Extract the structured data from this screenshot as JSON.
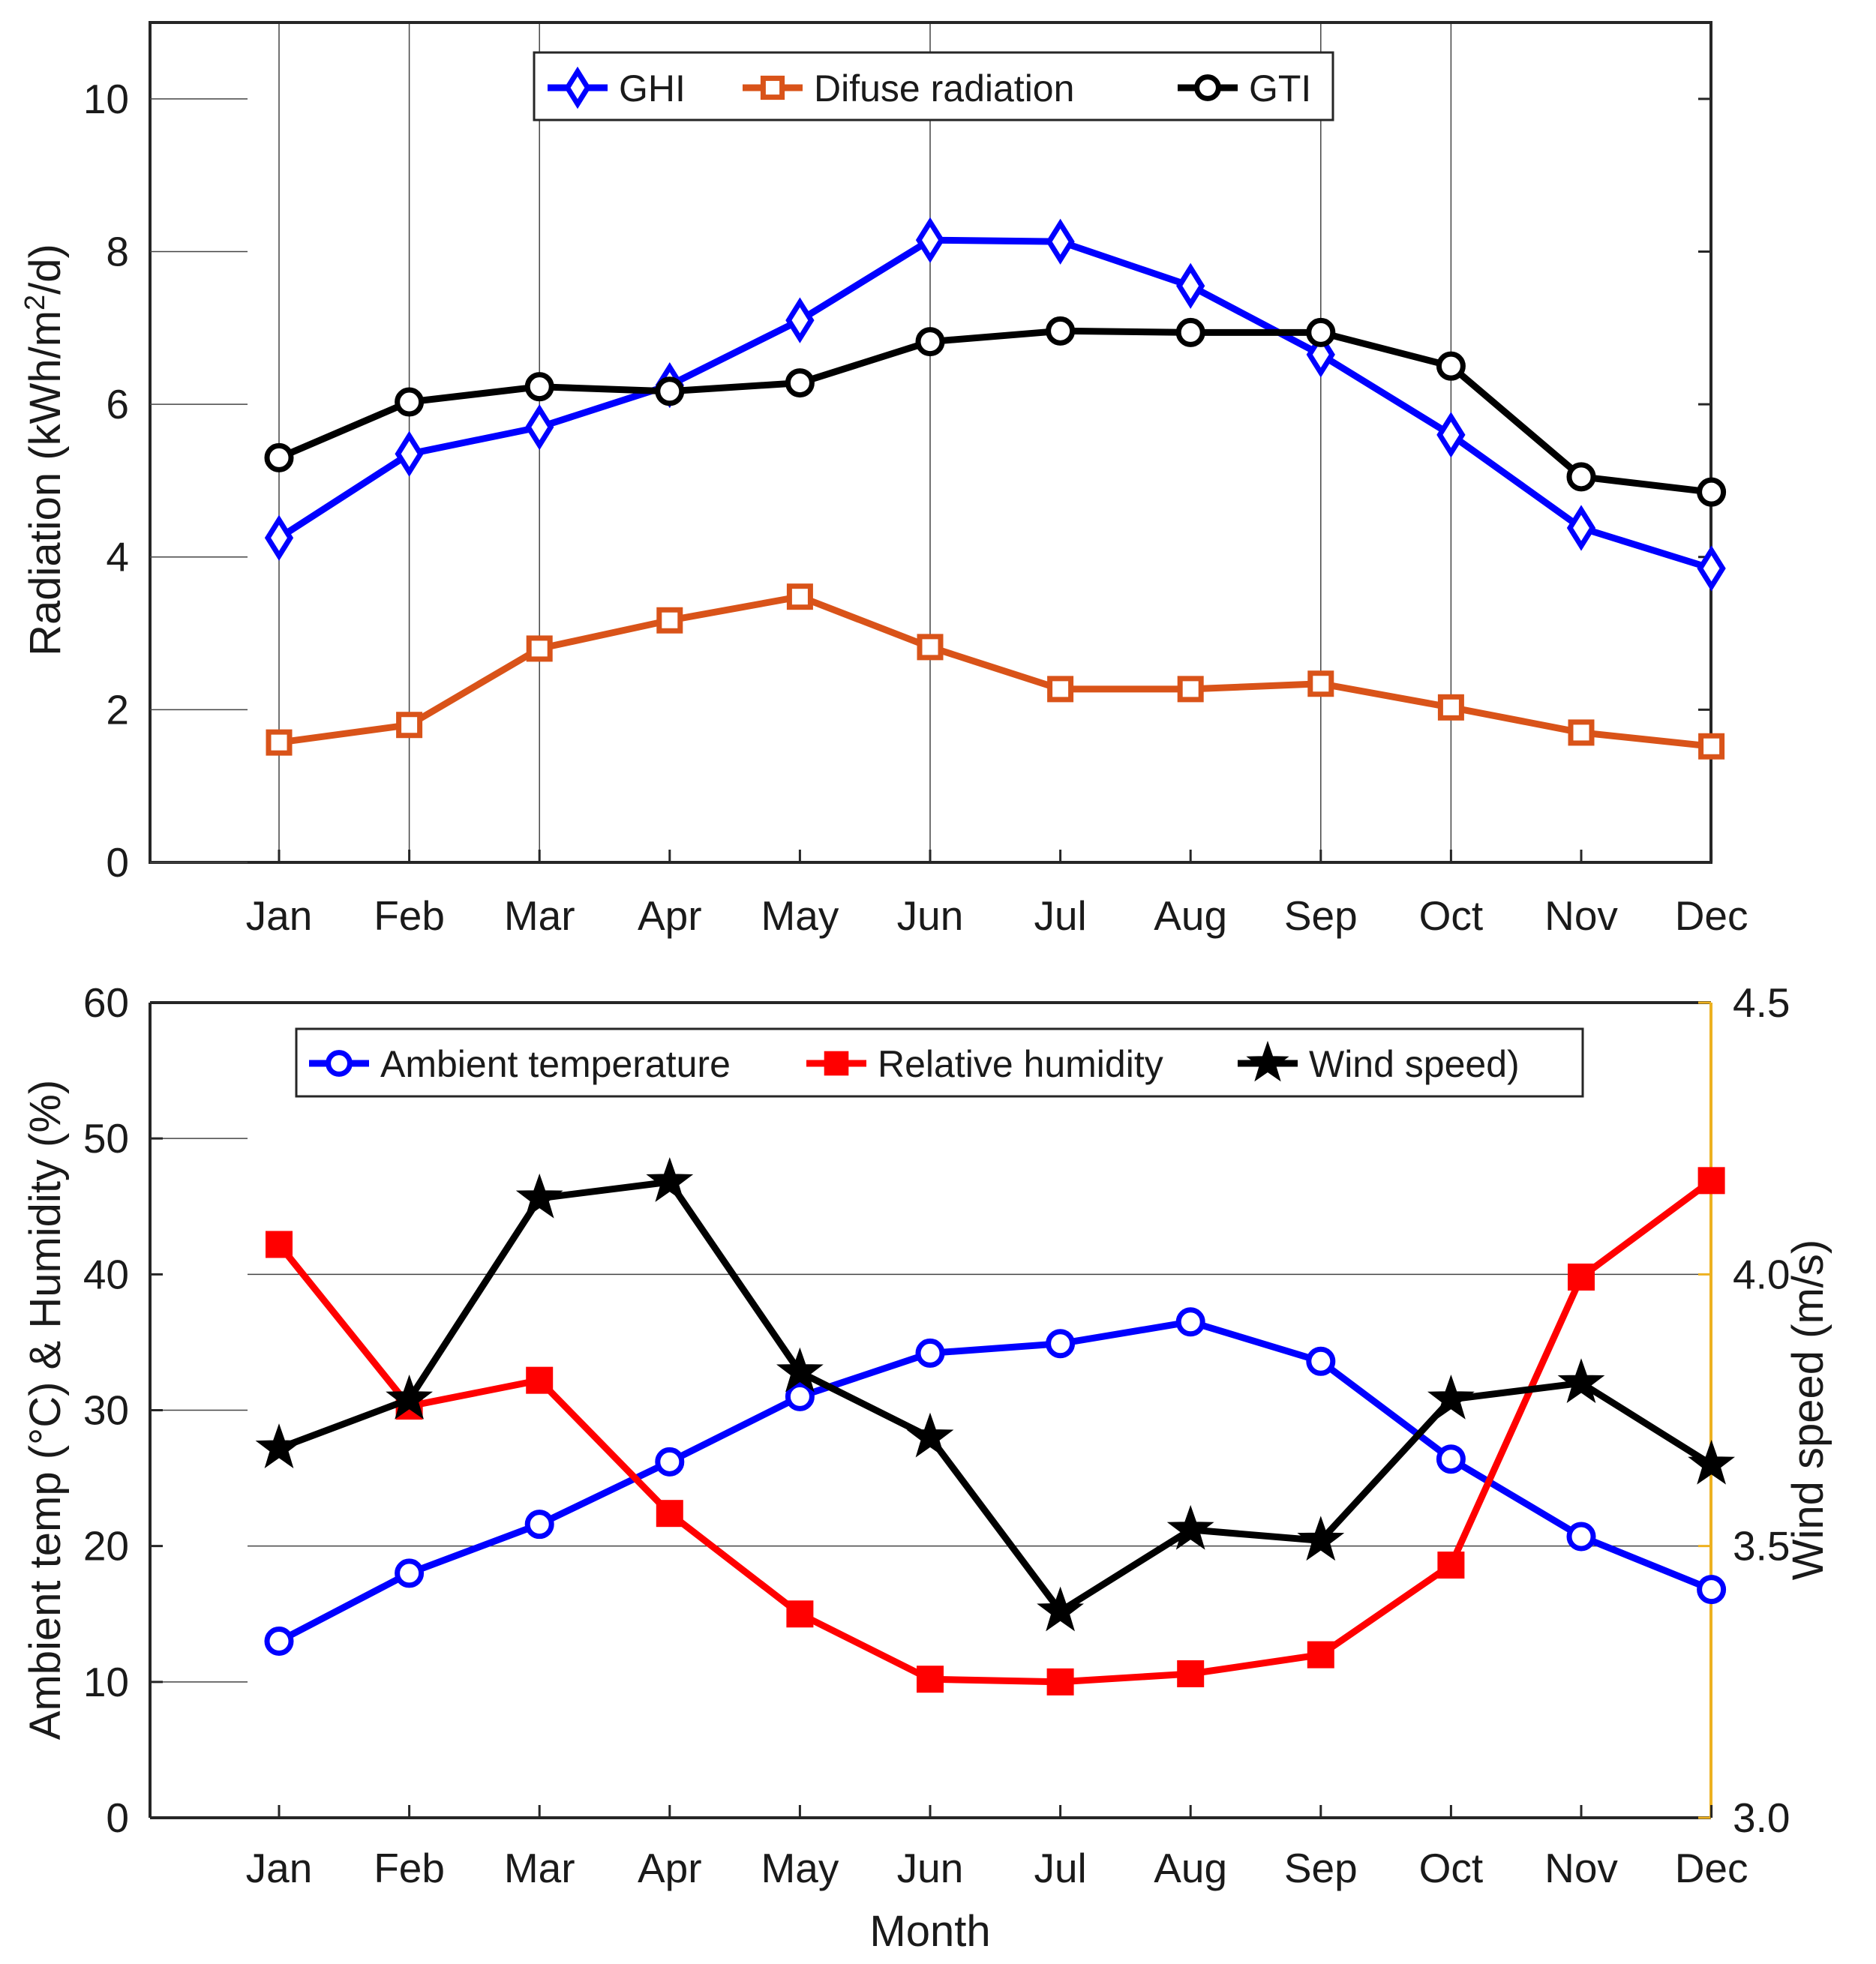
{
  "chart_data": [
    {
      "type": "line",
      "categories": [
        "Jan",
        "Feb",
        "Mar",
        "Apr",
        "May",
        "Jun",
        "Jul",
        "Aug",
        "Sep",
        "Oct",
        "Nov",
        "Dec"
      ],
      "ylabel": "Radiation (kWh/m²/d)",
      "ylabel_main": "Radiation (kWh/m",
      "ylabel_sup": "2",
      "ylabel_tail": "/d)",
      "ylim": [
        0,
        11
      ],
      "yticks": [
        "0",
        "2",
        "4",
        "6",
        "8",
        "10"
      ],
      "grid": "vertical lines at Jan, Feb, Mar, Jun, Sep, Oct; short horizontal ticks",
      "legend_position": "top-center",
      "series": [
        {
          "name": "GHI",
          "color": "#0000ff",
          "marker": "diamond",
          "values": [
            4.25,
            5.35,
            5.7,
            6.25,
            7.1,
            8.15,
            8.13,
            7.55,
            6.65,
            5.6,
            4.38,
            3.85
          ]
        },
        {
          "name": "Difuse radiation",
          "color": "#d95319",
          "marker": "square",
          "values": [
            1.57,
            1.8,
            2.8,
            3.17,
            3.48,
            2.82,
            2.27,
            2.27,
            2.34,
            2.03,
            1.7,
            1.52
          ]
        },
        {
          "name": "GTI",
          "color": "#000000",
          "marker": "circle",
          "values": [
            5.3,
            6.03,
            6.23,
            6.17,
            6.28,
            6.82,
            6.96,
            6.94,
            6.94,
            6.5,
            5.05,
            4.85
          ]
        }
      ]
    },
    {
      "type": "line",
      "categories": [
        "Jan",
        "Feb",
        "Mar",
        "Apr",
        "May",
        "Jun",
        "Jul",
        "Aug",
        "Sep",
        "Oct",
        "Nov",
        "Dec"
      ],
      "xlabel": "Month",
      "ylabel": "Ambient temp (°C) & Humidity (%)",
      "y2label": "Wind speed (m/s)",
      "ylim": [
        0,
        60
      ],
      "yticks": [
        "0",
        "10",
        "20",
        "30",
        "40",
        "50",
        "60"
      ],
      "y2lim": [
        3.0,
        4.5
      ],
      "y2ticks": [
        "3.0",
        "3.5",
        "4.0",
        "4.5"
      ],
      "y2_axis_color": "#edb120",
      "grid": "horizontal lines at 20 and 40",
      "legend_position": "top-center",
      "series": [
        {
          "name": "Ambient temperature",
          "axis": "left",
          "color": "#0000ff",
          "marker": "circle",
          "values": [
            13.0,
            18.0,
            21.6,
            26.2,
            31.0,
            34.2,
            34.9,
            36.5,
            33.6,
            26.4,
            20.7,
            16.8
          ]
        },
        {
          "name": "Relative humidity",
          "axis": "left",
          "color": "#ff0000",
          "marker": "filled-square",
          "values": [
            42.2,
            30.3,
            32.2,
            22.4,
            15.0,
            10.2,
            10.0,
            10.6,
            12.0,
            18.6,
            39.8,
            46.9
          ]
        },
        {
          "name": "Wind speed)",
          "axis": "right",
          "color": "#000000",
          "marker": "star",
          "values": [
            3.68,
            3.77,
            4.14,
            4.17,
            3.82,
            3.7,
            3.38,
            3.53,
            3.51,
            3.77,
            3.8,
            3.65
          ]
        }
      ]
    }
  ]
}
